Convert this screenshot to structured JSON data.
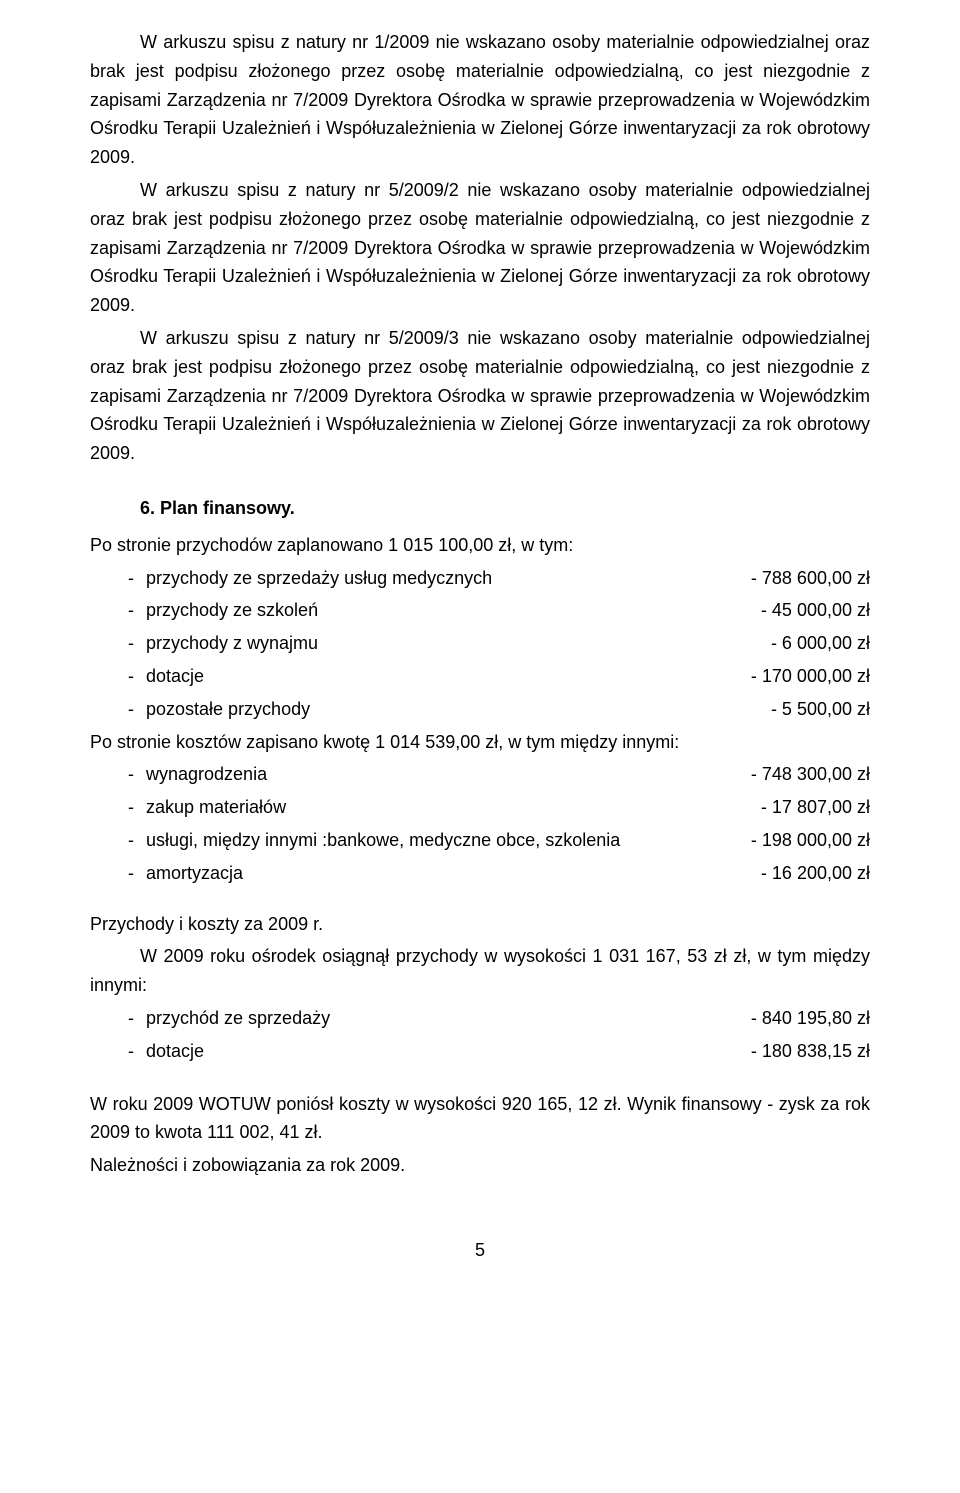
{
  "para1": "W arkuszu spisu z natury nr 1/2009 nie wskazano osoby materialnie odpowiedzialnej oraz brak jest podpisu złożonego przez osobę materialnie odpowiedzialną, co jest niezgodnie z zapisami Zarządzenia nr 7/2009 Dyrektora Ośrodka w sprawie przeprowadzenia w Wojewódzkim Ośrodku Terapii Uzależnień i Współuzależnienia w Zielonej Górze inwentaryzacji za rok obrotowy 2009.",
  "para2": "W arkuszu spisu z natury nr 5/2009/2 nie wskazano osoby materialnie odpowiedzialnej oraz brak jest podpisu złożonego przez osobę materialnie odpowiedzialną, co jest niezgodnie z zapisami Zarządzenia nr 7/2009 Dyrektora Ośrodka w sprawie przeprowadzenia w Wojewódzkim Ośrodku Terapii Uzależnień i Współuzależnienia w Zielonej Górze inwentaryzacji za rok obrotowy 2009.",
  "para3": "W arkuszu spisu z natury nr 5/2009/3 nie wskazano osoby materialnie odpowiedzialnej oraz brak jest podpisu złożonego przez osobę materialnie odpowiedzialną, co jest niezgodnie z zapisami Zarządzenia nr 7/2009 Dyrektora Ośrodka w sprawie przeprowadzenia w Wojewódzkim Ośrodku Terapii Uzależnień i Współuzależnienia w Zielonej Górze inwentaryzacji za rok obrotowy 2009.",
  "section6_heading": "6.  Plan finansowy.",
  "income_intro": "Po stronie przychodów zaplanowano 1 015 100,00 zł, w tym:",
  "income_items": [
    {
      "label": "przychody ze sprzedaży usług medycznych",
      "value": "- 788 600,00 zł"
    },
    {
      "label": "przychody ze szkoleń",
      "value": "-   45 000,00 zł"
    },
    {
      "label": "przychody z wynajmu",
      "value": "-     6 000,00 zł"
    },
    {
      "label": "dotacje",
      "value": "- 170 000,00 zł"
    },
    {
      "label": "pozostałe przychody",
      "value": "-     5 500,00 zł"
    }
  ],
  "cost_intro": "Po stronie kosztów zapisano kwotę 1 014 539,00 zł, w tym między innymi:",
  "cost_items": [
    {
      "label": "wynagrodzenia",
      "value": "- 748 300,00 zł"
    },
    {
      "label": "zakup materiałów",
      "value": "-   17 807,00 zł"
    },
    {
      "label": "usługi, między innymi :bankowe,  medyczne obce, szkolenia",
      "value": "- 198 000,00 zł"
    },
    {
      "label": "amortyzacja",
      "value": "-   16 200,00 zł"
    }
  ],
  "sub_heading": "Przychody i koszty za 2009 r.",
  "sub_para": "W 2009 roku ośrodek osiągnął przychody w wysokości 1 031 167, 53 zł zł, w tym między innymi:",
  "sub_items": [
    {
      "label": "przychód ze sprzedaży",
      "value": "- 840 195,80 zł"
    },
    {
      "label": "dotacje",
      "value": "- 180 838,15 zł"
    }
  ],
  "final_para": "W roku 2009 WOTUW poniósł koszty w wysokości  920 165, 12 zł. Wynik finansowy - zysk za rok 2009 to kwota 111 002, 41 zł.",
  "final_line": "Należności i zobowiązania za rok 2009.",
  "page_number": "5"
}
